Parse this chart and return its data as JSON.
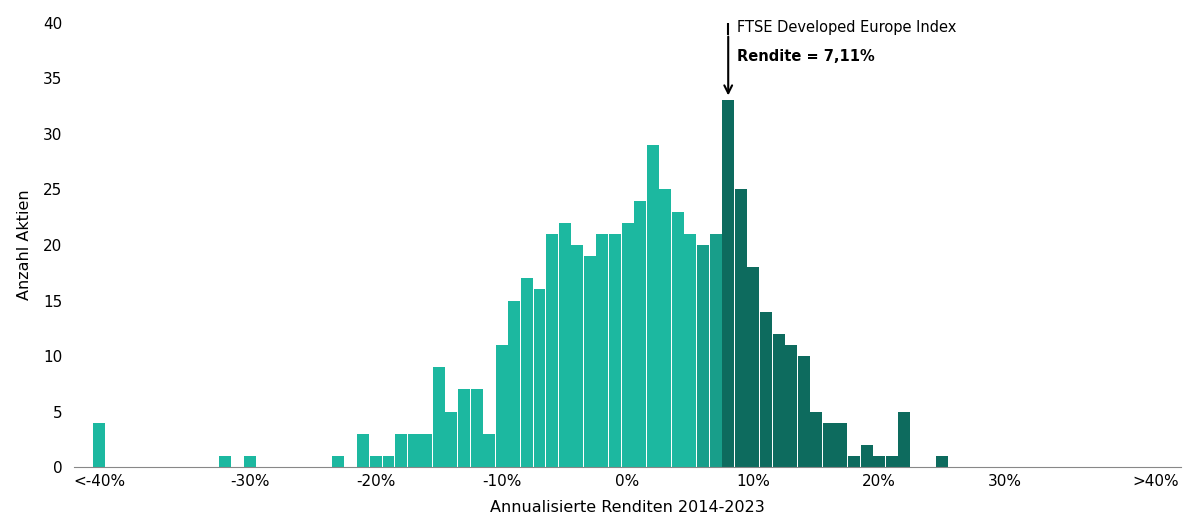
{
  "xlabel": "Annualisierte Renditen 2014-2023",
  "ylabel": "Anzahl Aktien",
  "ylim": [
    0,
    40
  ],
  "yticks": [
    0,
    5,
    10,
    15,
    20,
    25,
    30,
    35,
    40
  ],
  "annotation_line1": "FTSE Developed Europe Index",
  "annotation_line2": "Rendite = 7,11%",
  "benchmark_x": 8.0,
  "bar_width": 0.95,
  "background_color": "#ffffff",
  "bars": [
    {
      "x": -42,
      "height": 4,
      "color": "#1cb8a0"
    },
    {
      "x": -32,
      "height": 1,
      "color": "#1cb8a0"
    },
    {
      "x": -30,
      "height": 1,
      "color": "#1cb8a0"
    },
    {
      "x": -23,
      "height": 1,
      "color": "#1cb8a0"
    },
    {
      "x": -21,
      "height": 3,
      "color": "#1cb8a0"
    },
    {
      "x": -20,
      "height": 1,
      "color": "#1cb8a0"
    },
    {
      "x": -19,
      "height": 1,
      "color": "#1cb8a0"
    },
    {
      "x": -18,
      "height": 3,
      "color": "#1cb8a0"
    },
    {
      "x": -17,
      "height": 3,
      "color": "#1cb8a0"
    },
    {
      "x": -16,
      "height": 3,
      "color": "#1cb8a0"
    },
    {
      "x": -15,
      "height": 9,
      "color": "#1cb8a0"
    },
    {
      "x": -14,
      "height": 5,
      "color": "#1cb8a0"
    },
    {
      "x": -13,
      "height": 7,
      "color": "#1cb8a0"
    },
    {
      "x": -12,
      "height": 7,
      "color": "#1cb8a0"
    },
    {
      "x": -11,
      "height": 3,
      "color": "#1cb8a0"
    },
    {
      "x": -10,
      "height": 11,
      "color": "#1cb8a0"
    },
    {
      "x": -9,
      "height": 15,
      "color": "#1cb8a0"
    },
    {
      "x": -8,
      "height": 17,
      "color": "#1cb8a0"
    },
    {
      "x": -7,
      "height": 16,
      "color": "#1cb8a0"
    },
    {
      "x": -6,
      "height": 21,
      "color": "#1cb8a0"
    },
    {
      "x": -5,
      "height": 22,
      "color": "#1cb8a0"
    },
    {
      "x": -4,
      "height": 20,
      "color": "#1cb8a0"
    },
    {
      "x": -3,
      "height": 19,
      "color": "#1cb8a0"
    },
    {
      "x": -2,
      "height": 21,
      "color": "#1cb8a0"
    },
    {
      "x": -1,
      "height": 21,
      "color": "#1cb8a0"
    },
    {
      "x": 0,
      "height": 22,
      "color": "#1cb8a0"
    },
    {
      "x": 1,
      "height": 24,
      "color": "#1cb8a0"
    },
    {
      "x": 2,
      "height": 29,
      "color": "#1cb8a0"
    },
    {
      "x": 3,
      "height": 25,
      "color": "#1cb8a0"
    },
    {
      "x": 4,
      "height": 23,
      "color": "#1cb8a0"
    },
    {
      "x": 5,
      "height": 21,
      "color": "#1cb8a0"
    },
    {
      "x": 6,
      "height": 20,
      "color": "#189e8a"
    },
    {
      "x": 7,
      "height": 21,
      "color": "#189e8a"
    },
    {
      "x": 8,
      "height": 33,
      "color": "#0d6b5e"
    },
    {
      "x": 9,
      "height": 25,
      "color": "#0d6b5e"
    },
    {
      "x": 10,
      "height": 18,
      "color": "#0d6b5e"
    },
    {
      "x": 11,
      "height": 14,
      "color": "#0d6b5e"
    },
    {
      "x": 12,
      "height": 12,
      "color": "#0d6b5e"
    },
    {
      "x": 13,
      "height": 11,
      "color": "#0d6b5e"
    },
    {
      "x": 14,
      "height": 10,
      "color": "#0d6b5e"
    },
    {
      "x": 15,
      "height": 5,
      "color": "#0d6b5e"
    },
    {
      "x": 16,
      "height": 4,
      "color": "#0d6b5e"
    },
    {
      "x": 17,
      "height": 4,
      "color": "#0d6b5e"
    },
    {
      "x": 18,
      "height": 1,
      "color": "#0d6b5e"
    },
    {
      "x": 19,
      "height": 2,
      "color": "#0d6b5e"
    },
    {
      "x": 20,
      "height": 1,
      "color": "#0d6b5e"
    },
    {
      "x": 21,
      "height": 1,
      "color": "#0d6b5e"
    },
    {
      "x": 22,
      "height": 5,
      "color": "#0d6b5e"
    },
    {
      "x": 25,
      "height": 1,
      "color": "#0d6b5e"
    }
  ],
  "xtick_positions": [
    -42,
    -30,
    -20,
    -10,
    0,
    10,
    20,
    30,
    42
  ],
  "xtick_labels": [
    "<-40%",
    "-30%",
    "-20%",
    "-10%",
    "0%",
    "10%",
    "20%",
    "30%",
    ">40%"
  ]
}
